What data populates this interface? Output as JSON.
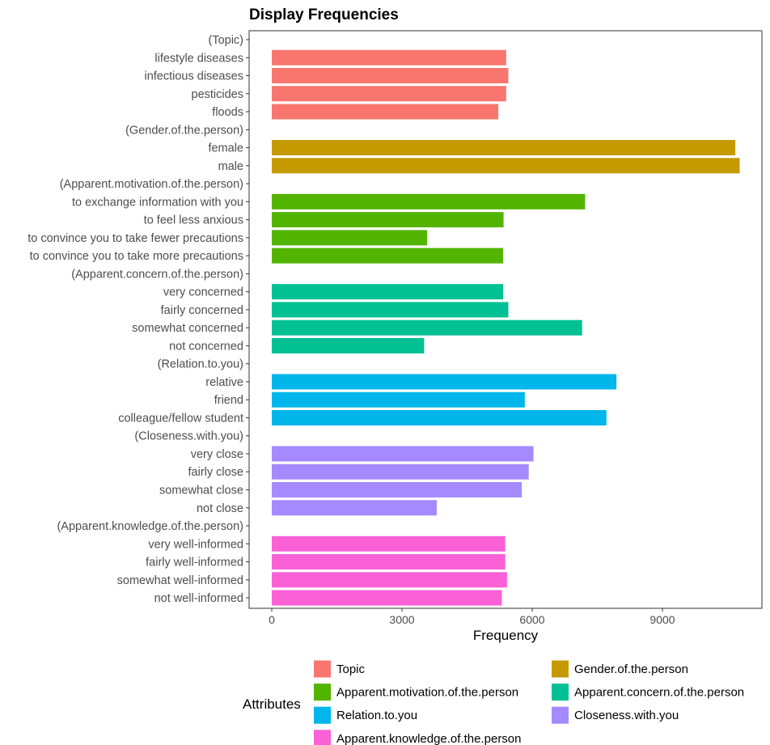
{
  "chart_data": {
    "type": "bar",
    "orientation": "horizontal",
    "title": "Display Frequencies",
    "xlabel": "Frequency",
    "ylabel": "",
    "xlim": [
      0,
      11000
    ],
    "xticks": [
      0,
      3000,
      6000,
      9000
    ],
    "grid": false,
    "legend": {
      "title": "Attributes",
      "placement": "bottom",
      "entries": [
        {
          "name": "Topic",
          "color": "#F8766D"
        },
        {
          "name": "Gender.of.the.person",
          "color": "#C49A00"
        },
        {
          "name": "Apparent.motivation.of.the.person",
          "color": "#53B400"
        },
        {
          "name": "Apparent.concern.of.the.person",
          "color": "#00C094"
        },
        {
          "name": "Relation.to.you",
          "color": "#00B6EB"
        },
        {
          "name": "Closeness.with.you",
          "color": "#A58AFF"
        },
        {
          "name": "Apparent.knowledge.of.the.person",
          "color": "#FB61D7"
        }
      ]
    },
    "rows": [
      {
        "label": "(Topic)",
        "value": null,
        "group": null
      },
      {
        "label": "lifestyle diseases",
        "value": 5400,
        "group": "Topic"
      },
      {
        "label": "infectious diseases",
        "value": 5450,
        "group": "Topic"
      },
      {
        "label": "pesticides",
        "value": 5400,
        "group": "Topic"
      },
      {
        "label": "floods",
        "value": 5220,
        "group": "Topic"
      },
      {
        "label": "(Gender.of.the.person)",
        "value": null,
        "group": null
      },
      {
        "label": "female",
        "value": 10680,
        "group": "Gender.of.the.person"
      },
      {
        "label": "male",
        "value": 10780,
        "group": "Gender.of.the.person"
      },
      {
        "label": "(Apparent.motivation.of.the.person)",
        "value": null,
        "group": null
      },
      {
        "label": "to exchange information with you",
        "value": 7220,
        "group": "Apparent.motivation.of.the.person"
      },
      {
        "label": "to feel less anxious",
        "value": 5340,
        "group": "Apparent.motivation.of.the.person"
      },
      {
        "label": "to convince you to take fewer precautions",
        "value": 3580,
        "group": "Apparent.motivation.of.the.person"
      },
      {
        "label": "to convince you to take more precautions",
        "value": 5330,
        "group": "Apparent.motivation.of.the.person"
      },
      {
        "label": "(Apparent.concern.of.the.person)",
        "value": null,
        "group": null
      },
      {
        "label": "very concerned",
        "value": 5330,
        "group": "Apparent.concern.of.the.person"
      },
      {
        "label": "fairly concerned",
        "value": 5450,
        "group": "Apparent.concern.of.the.person"
      },
      {
        "label": "somewhat concerned",
        "value": 7150,
        "group": "Apparent.concern.of.the.person"
      },
      {
        "label": "not concerned",
        "value": 3510,
        "group": "Apparent.concern.of.the.person"
      },
      {
        "label": "(Relation.to.you)",
        "value": null,
        "group": null
      },
      {
        "label": "relative",
        "value": 7940,
        "group": "Relation.to.you"
      },
      {
        "label": "friend",
        "value": 5830,
        "group": "Relation.to.you"
      },
      {
        "label": "colleague/fellow student",
        "value": 7710,
        "group": "Relation.to.you"
      },
      {
        "label": "(Closeness.with.you)",
        "value": null,
        "group": null
      },
      {
        "label": "very close",
        "value": 6030,
        "group": "Closeness.with.you"
      },
      {
        "label": "fairly close",
        "value": 5920,
        "group": "Closeness.with.you"
      },
      {
        "label": "somewhat close",
        "value": 5760,
        "group": "Closeness.with.you"
      },
      {
        "label": "not close",
        "value": 3800,
        "group": "Closeness.with.you"
      },
      {
        "label": "(Apparent.knowledge.of.the.person)",
        "value": null,
        "group": null
      },
      {
        "label": "very well-informed",
        "value": 5380,
        "group": "Apparent.knowledge.of.the.person"
      },
      {
        "label": "fairly well-informed",
        "value": 5380,
        "group": "Apparent.knowledge.of.the.person"
      },
      {
        "label": "somewhat well-informed",
        "value": 5420,
        "group": "Apparent.knowledge.of.the.person"
      },
      {
        "label": "not well-informed",
        "value": 5300,
        "group": "Apparent.knowledge.of.the.person"
      }
    ]
  }
}
